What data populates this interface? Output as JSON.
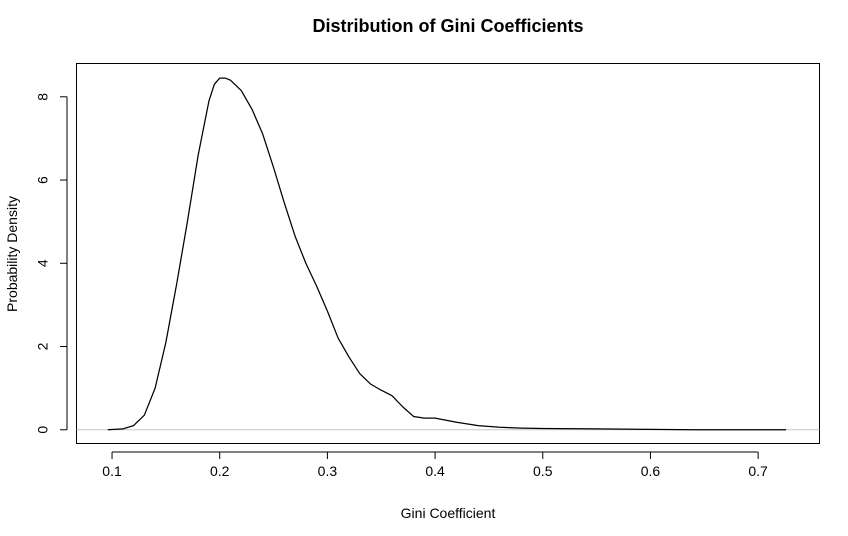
{
  "chart_data": {
    "type": "line",
    "title": "Distribution of Gini Coefficients",
    "xlabel": "Gini Coefficient",
    "ylabel": "Probability Density",
    "xlim": [
      0.067,
      0.757
    ],
    "ylim": [
      -0.33,
      8.8
    ],
    "x_ticks": [
      "0.1",
      "0.2",
      "0.3",
      "0.4",
      "0.5",
      "0.6",
      "0.7"
    ],
    "y_ticks": [
      "0",
      "2",
      "4",
      "6",
      "8"
    ],
    "baseline_y": 0,
    "grid": false,
    "legend": "none",
    "line_color": "#000000",
    "baseline_color": "#c8c8c8",
    "series": [
      {
        "x": [
          0.096,
          0.11,
          0.12,
          0.13,
          0.14,
          0.15,
          0.16,
          0.17,
          0.18,
          0.19,
          0.195,
          0.2,
          0.205,
          0.21,
          0.22,
          0.23,
          0.24,
          0.25,
          0.26,
          0.27,
          0.28,
          0.29,
          0.3,
          0.31,
          0.32,
          0.33,
          0.34,
          0.35,
          0.36,
          0.37,
          0.38,
          0.39,
          0.4,
          0.42,
          0.44,
          0.46,
          0.48,
          0.5,
          0.55,
          0.6,
          0.64,
          0.7,
          0.726
        ],
        "y": [
          0.0,
          0.02,
          0.1,
          0.35,
          1.0,
          2.1,
          3.5,
          5.0,
          6.6,
          7.9,
          8.3,
          8.45,
          8.45,
          8.4,
          8.15,
          7.7,
          7.1,
          6.3,
          5.45,
          4.65,
          4.0,
          3.45,
          2.85,
          2.2,
          1.75,
          1.35,
          1.1,
          0.95,
          0.82,
          0.55,
          0.32,
          0.28,
          0.28,
          0.18,
          0.1,
          0.06,
          0.04,
          0.03,
          0.02,
          0.01,
          0.0,
          0.0,
          0.0
        ]
      }
    ]
  }
}
